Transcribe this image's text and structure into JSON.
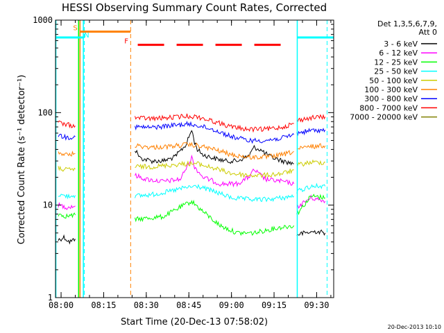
{
  "chart_data": {
    "type": "line",
    "title": "HESSI Observing Summary Count Rates, Corrected",
    "xlabel": "Start Time (20-Dec-13 07:58:02)",
    "ylabel": "Corrected Count Rate (s⁻¹ detector⁻¹)",
    "yscale": "log",
    "xlim": [
      "07:58:02",
      "09:36:00"
    ],
    "ylim": [
      1,
      1000
    ],
    "x_tick_labels": [
      "08:00",
      "08:15",
      "08:30",
      "08:45",
      "09:00",
      "09:15",
      "09:30"
    ],
    "y_tick_labels": [
      "1",
      "10",
      "100",
      "1000"
    ],
    "legend_header": [
      "Det 1,3,5,6,7,9,",
      "Att 0"
    ],
    "legend_position": "right",
    "timestamp": "20-Dec-2013 10:10",
    "series": [
      {
        "name": "3 - 6 keV",
        "color": "#000000",
        "segments": [
          {
            "x": [
              "07:59",
              "08:01",
              "08:03",
              "08:05"
            ],
            "y": [
              4.2,
              4.5,
              4.0,
              4.3
            ]
          },
          {
            "x": [
              "08:26",
              "08:28",
              "08:32",
              "08:36",
              "08:40",
              "08:44",
              "08:46",
              "08:47",
              "08:48",
              "08:50",
              "08:54",
              "08:58",
              "09:02",
              "09:06",
              "09:08",
              "09:10",
              "09:12",
              "09:14",
              "09:18",
              "09:22"
            ],
            "y": [
              40,
              32,
              30,
              30,
              33,
              45,
              65,
              48,
              40,
              35,
              32,
              30,
              30,
              34,
              42,
              40,
              36,
              33,
              30,
              28
            ]
          },
          {
            "x": [
              "09:23",
              "09:26",
              "09:30",
              "09:33"
            ],
            "y": [
              4.8,
              5.0,
              5.2,
              5.0
            ]
          }
        ]
      },
      {
        "name": "6 - 12 keV",
        "color": "#ff00ff",
        "segments": [
          {
            "x": [
              "07:59",
              "08:02",
              "08:05"
            ],
            "y": [
              10,
              9.5,
              9.8
            ]
          },
          {
            "x": [
              "08:26",
              "08:30",
              "08:36",
              "08:42",
              "08:44",
              "08:46",
              "08:47",
              "08:50",
              "08:56",
              "09:02",
              "09:06",
              "09:08",
              "09:12",
              "09:18",
              "09:22"
            ],
            "y": [
              21,
              19,
              18,
              19,
              25,
              33,
              26,
              20,
              17,
              17,
              20,
              24,
              19,
              18,
              17
            ]
          },
          {
            "x": [
              "09:23",
              "09:28",
              "09:33"
            ],
            "y": [
              9.5,
              12,
              11
            ]
          }
        ]
      },
      {
        "name": "12 - 25 keV",
        "color": "#00ff00",
        "segments": [
          {
            "x": [
              "07:59",
              "08:02",
              "08:05"
            ],
            "y": [
              8,
              7.6,
              7.8
            ]
          },
          {
            "x": [
              "08:26",
              "08:30",
              "08:36",
              "08:42",
              "08:46",
              "08:50",
              "08:56",
              "09:02",
              "09:08",
              "09:14",
              "09:18",
              "09:22"
            ],
            "y": [
              7,
              7.2,
              7.5,
              9.5,
              11,
              8.5,
              6,
              5,
              5,
              5.5,
              5.8,
              6
            ]
          },
          {
            "x": [
              "09:23",
              "09:28",
              "09:33"
            ],
            "y": [
              8,
              12.5,
              12
            ]
          }
        ]
      },
      {
        "name": "25 - 50 keV",
        "color": "#00ffff",
        "segments": [
          {
            "x": [
              "07:59",
              "08:02",
              "08:05"
            ],
            "y": [
              13,
              12.5,
              12.8
            ]
          },
          {
            "x": [
              "08:26",
              "08:32",
              "08:38",
              "08:44",
              "08:48",
              "08:54",
              "09:00",
              "09:06",
              "09:12",
              "09:18",
              "09:22"
            ],
            "y": [
              12.5,
              13,
              14,
              15.5,
              16,
              14,
              12,
              11.5,
              11.5,
              12,
              12.5
            ]
          },
          {
            "x": [
              "09:23",
              "09:28",
              "09:33"
            ],
            "y": [
              14,
              16,
              16
            ]
          }
        ]
      },
      {
        "name": "50 - 100 keV",
        "color": "#cccc00",
        "segments": [
          {
            "x": [
              "07:59",
              "08:02",
              "08:05"
            ],
            "y": [
              25,
              24,
              24.5
            ]
          },
          {
            "x": [
              "08:26",
              "08:32",
              "08:38",
              "08:44",
              "08:48",
              "08:54",
              "09:00",
              "09:06",
              "09:12",
              "09:18",
              "09:22"
            ],
            "y": [
              26,
              26,
              27,
              28,
              28,
              25,
              22,
              21,
              21,
              22,
              24
            ]
          },
          {
            "x": [
              "09:23",
              "09:28",
              "09:33"
            ],
            "y": [
              27,
              29,
              29
            ]
          }
        ]
      },
      {
        "name": "100 - 300 keV",
        "color": "#ff8000",
        "segments": [
          {
            "x": [
              "07:59",
              "08:02",
              "08:05"
            ],
            "y": [
              37,
              35,
              36
            ]
          },
          {
            "x": [
              "08:26",
              "08:32",
              "08:38",
              "08:44",
              "08:48",
              "08:54",
              "09:00",
              "09:06",
              "09:12",
              "09:18",
              "09:22"
            ],
            "y": [
              44,
              42,
              43,
              45,
              44,
              40,
              35,
              33,
              33,
              35,
              38
            ]
          },
          {
            "x": [
              "09:23",
              "09:28",
              "09:33"
            ],
            "y": [
              40,
              43,
              44
            ]
          }
        ]
      },
      {
        "name": "300 - 800 keV",
        "color": "#0000ff",
        "segments": [
          {
            "x": [
              "07:59",
              "08:02",
              "08:05"
            ],
            "y": [
              57,
              54,
              55
            ]
          },
          {
            "x": [
              "08:26",
              "08:32",
              "08:38",
              "08:44",
              "08:48",
              "08:54",
              "09:00",
              "09:06",
              "09:12",
              "09:18",
              "09:22"
            ],
            "y": [
              70,
              69,
              72,
              75,
              73,
              65,
              55,
              50,
              50,
              53,
              58
            ]
          },
          {
            "x": [
              "09:23",
              "09:28",
              "09:33"
            ],
            "y": [
              60,
              64,
              65
            ]
          }
        ]
      },
      {
        "name": "800 - 7000 keV",
        "color": "#ff0000",
        "segments": [
          {
            "x": [
              "07:59",
              "08:02",
              "08:05"
            ],
            "y": [
              78,
              74,
              72
            ]
          },
          {
            "x": [
              "08:26",
              "08:32",
              "08:38",
              "08:44",
              "08:48",
              "08:54",
              "09:00",
              "09:06",
              "09:12",
              "09:18",
              "09:22"
            ],
            "y": [
              88,
              86,
              88,
              92,
              90,
              80,
              70,
              66,
              66,
              70,
              76
            ]
          },
          {
            "x": [
              "09:23",
              "09:28",
              "09:33"
            ],
            "y": [
              82,
              88,
              90
            ]
          }
        ]
      },
      {
        "name": "7000 - 20000 keV",
        "color": "#808000",
        "segments": []
      }
    ],
    "annotations": [
      {
        "type": "vline",
        "x": "07:58:10",
        "color": "#00ffff",
        "style": "solid"
      },
      {
        "type": "vline",
        "x": "08:06:10",
        "color": "#00ff00",
        "style": "solid"
      },
      {
        "type": "vline",
        "x": "08:06:40",
        "color": "#ff8000",
        "style": "solid"
      },
      {
        "type": "vline",
        "x": "08:07:50",
        "color": "#00ffff",
        "style": "solid"
      },
      {
        "type": "vline",
        "x": "08:08:10",
        "color": "#00ffff",
        "style": "dashed"
      },
      {
        "type": "vline",
        "x": "08:24:30",
        "color": "#ff8000",
        "style": "dashed"
      },
      {
        "type": "vline",
        "x": "09:23:10",
        "color": "#00ffff",
        "style": "solid"
      },
      {
        "type": "vline",
        "x": "09:33:40",
        "color": "#00ffff",
        "style": "dashed"
      },
      {
        "type": "hbar",
        "x": [
          "07:58:02",
          "08:08:00"
        ],
        "y": 650,
        "color": "#00ffff",
        "style": "solid"
      },
      {
        "type": "hbar",
        "x": [
          "09:23:10",
          "09:36:00"
        ],
        "y": 650,
        "color": "#00ffff",
        "style": "solid"
      },
      {
        "type": "hbar",
        "x": [
          "08:06:40",
          "08:24:30"
        ],
        "y": 750,
        "color": "#ff8000",
        "style": "solid"
      },
      {
        "type": "hbar",
        "x": [
          "08:27:00",
          "09:21:00"
        ],
        "y": 540,
        "color": "#ff0000",
        "style": "dashed"
      },
      {
        "type": "text",
        "text": "S",
        "x": "08:05:00",
        "y": 780,
        "color": "#ff8000"
      },
      {
        "type": "text",
        "text": "N",
        "x": "08:09:00",
        "y": 650,
        "color": "#00ffff"
      },
      {
        "type": "text",
        "text": "F",
        "x": "08:23:00",
        "y": 560,
        "color": "#ff0000"
      }
    ]
  }
}
